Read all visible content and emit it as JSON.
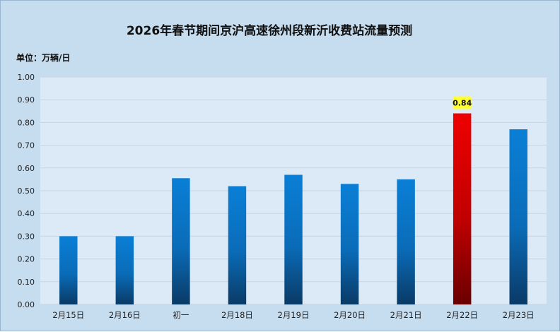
{
  "chart_data": {
    "type": "bar",
    "title": "2026年春节期间京沪高速徐州段新沂收费站流量预测",
    "unit_label": "单位：万辆/日",
    "xlabel": "",
    "ylabel": "",
    "categories": [
      "2月15日",
      "2月16日",
      "初一",
      "2月18日",
      "2月19日",
      "2月20日",
      "2月21日",
      "2月22日",
      "2月23日"
    ],
    "values": [
      0.3,
      0.3,
      0.555,
      0.52,
      0.57,
      0.53,
      0.55,
      0.84,
      0.77
    ],
    "ylim": [
      0,
      1.0
    ],
    "yticks": [
      "0.00",
      "0.10",
      "0.20",
      "0.30",
      "0.40",
      "0.50",
      "0.60",
      "0.70",
      "0.80",
      "0.90",
      "1.00"
    ],
    "data_labels": [
      {
        "category": "2月22日",
        "text": "0.84"
      }
    ],
    "highlight_category": "2月22日",
    "grid": true,
    "legend": "none",
    "colors": {
      "bar_top": "#0a7fd6",
      "bar_bottom": "#0a3a66",
      "highlight_top": "#ee0000",
      "highlight_bottom": "#6a0000",
      "label_bg": "#ffff33",
      "plot_bg": "#dce9f6",
      "outer_bg": "#c6dcef",
      "grid": "#c9d4e0"
    }
  }
}
